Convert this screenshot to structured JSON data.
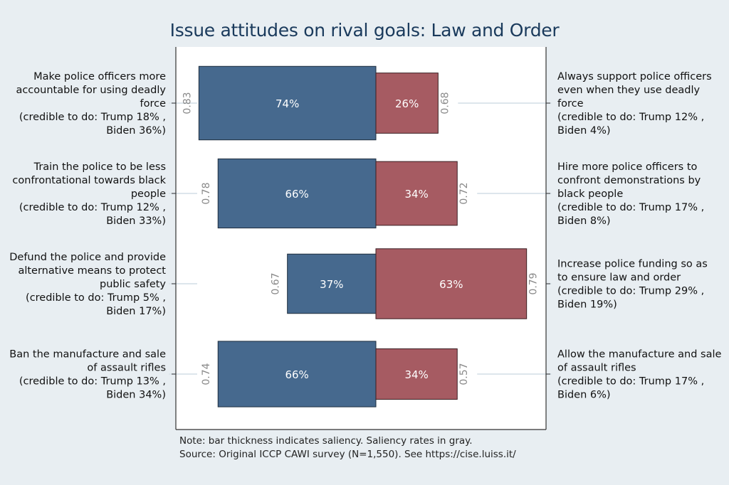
{
  "title": "Issue attitudes on rival goals: Law and Order",
  "note": "Note: bar thickness indicates saliency. Saliency rates in gray.",
  "source": "Source: Original ICCP CAWI survey (N=1,550). See https://cise.luiss.it/",
  "colors": {
    "left_bar": "#46698e",
    "right_bar": "#a65b62",
    "saliency_text": "#8a8a8a",
    "background": "#e8eef2",
    "plot_background": "#ffffff"
  },
  "chart_data": {
    "type": "bar",
    "orientation": "horizontal-diverging",
    "title": "Issue attitudes on rival goals: Law and Order",
    "xlim": [
      -100,
      100
    ],
    "grid": false,
    "items": [
      {
        "left_label": [
          "Make police officers more",
          "accountable for using deadly",
          "force",
          "(credible to do: Trump 18% ,",
          "Biden 36%)"
        ],
        "right_label": [
          "Always support police officers",
          "even when they use deadly",
          "force",
          "(credible to do: Trump 12% ,",
          "Biden 4%)"
        ],
        "left_value": 74,
        "right_value": 26,
        "left_text": "74%",
        "right_text": "26%",
        "left_saliency": 0.83,
        "right_saliency": 0.68,
        "left_saliency_text": "0.83",
        "right_saliency_text": "0.68"
      },
      {
        "left_label": [
          "Train the police to be less",
          "confrontational towards black",
          "people",
          "(credible to do: Trump 12% ,",
          "Biden 33%)"
        ],
        "right_label": [
          "Hire more police officers to",
          "confront demonstrations by",
          "black people",
          "(credible to do: Trump 17% ,",
          "Biden 8%)"
        ],
        "left_value": 66,
        "right_value": 34,
        "left_text": "66%",
        "right_text": "34%",
        "left_saliency": 0.78,
        "right_saliency": 0.72,
        "left_saliency_text": "0.78",
        "right_saliency_text": "0.72"
      },
      {
        "left_label": [
          "Defund the police and provide",
          "alternative means to protect",
          "public safety",
          "(credible to do: Trump 5% ,",
          "Biden 17%)"
        ],
        "right_label": [
          "Increase police funding so as",
          "to ensure law and order",
          "(credible to do: Trump 29% ,",
          "Biden 19%)"
        ],
        "left_value": 37,
        "right_value": 63,
        "left_text": "37%",
        "right_text": "63%",
        "left_saliency": 0.67,
        "right_saliency": 0.79,
        "left_saliency_text": "0.67",
        "right_saliency_text": "0.79"
      },
      {
        "left_label": [
          "Ban the manufacture and sale",
          "of assault rifles",
          "(credible to do: Trump 13% ,",
          "Biden 34%)"
        ],
        "right_label": [
          "Allow the manufacture and sale",
          "of assault rifles",
          "(credible to do: Trump 17% ,",
          "Biden 6%)"
        ],
        "left_value": 66,
        "right_value": 34,
        "left_text": "66%",
        "right_text": "34%",
        "left_saliency": 0.74,
        "right_saliency": 0.57,
        "left_saliency_text": "0.74",
        "right_saliency_text": "0.57"
      }
    ]
  }
}
